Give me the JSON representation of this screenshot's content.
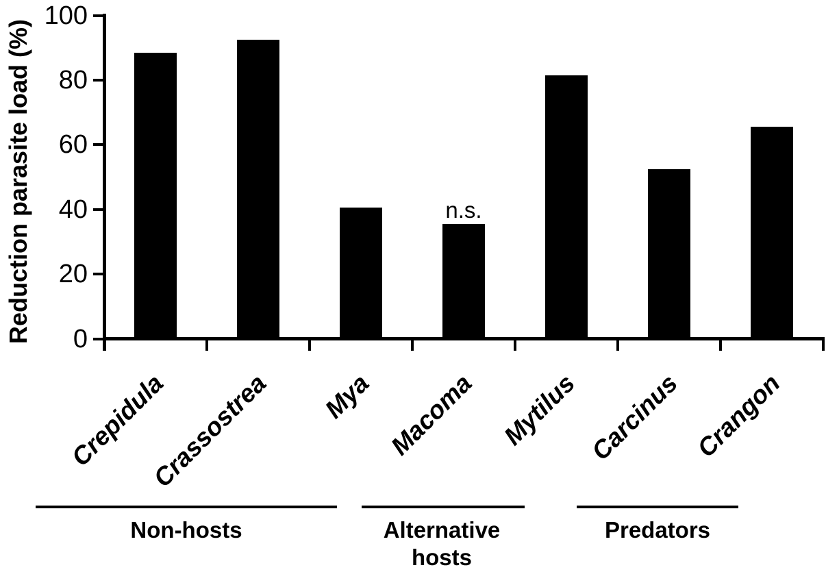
{
  "chart_data": {
    "type": "bar",
    "title": "",
    "ylabel": "Reduction parasite load (%)",
    "xlabel": "",
    "ylim": [
      0,
      100
    ],
    "yticks": [
      0,
      20,
      40,
      60,
      80,
      100
    ],
    "categories": [
      "Crepidula",
      "Crassostrea",
      "Mya",
      "Macoma",
      "Mytilus",
      "Carcinus",
      "Crangon"
    ],
    "values": [
      88,
      92,
      40,
      35,
      81,
      52,
      65
    ],
    "bar_color": "#000000",
    "background_color": "#ffffff",
    "grid": false,
    "legend": false,
    "annotations": [
      {
        "text": "n.s.",
        "category": "Macoma"
      }
    ],
    "groups": [
      {
        "label": "Non-hosts",
        "categories": [
          "Crepidula",
          "Crassostrea",
          "Mya"
        ]
      },
      {
        "label": "Alternative hosts",
        "categories": [
          "Macoma",
          "Mytilus"
        ]
      },
      {
        "label": "Predators",
        "categories": [
          "Carcinus",
          "Crangon"
        ]
      }
    ]
  }
}
